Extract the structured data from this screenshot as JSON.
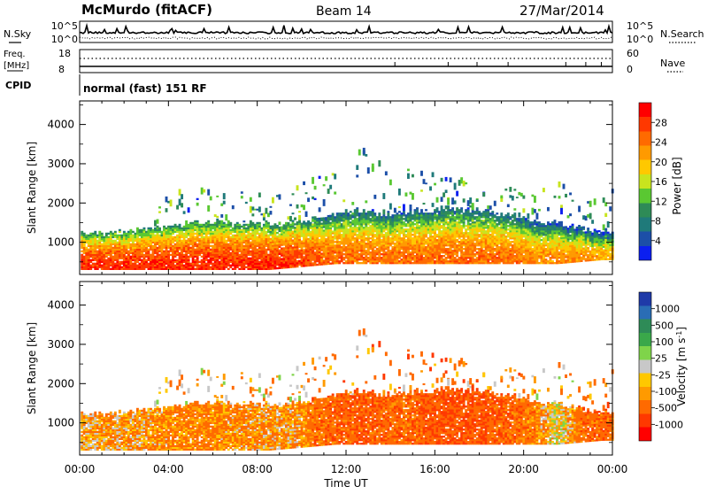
{
  "header": {
    "station": "McMurdo (fitACF)",
    "beam": "Beam 14",
    "date": "27/Mar/2014"
  },
  "strip_panels": {
    "nsky_label": "N.Sky",
    "nsearch_label": "N.Search",
    "nsky_top_tick": "10^5",
    "nsky_bottom_tick": "10^0",
    "freq_label_line1": "Freq.",
    "freq_label_line2": "[MHz]",
    "freq_top_tick": "18",
    "freq_bottom_tick": "8",
    "nave_label": "Nave",
    "nave_top_tick": "60",
    "nave_bottom_tick": "0",
    "cpid_label": "CPID",
    "cpid_text": "normal (fast) 151 RF"
  },
  "chart_data": [
    {
      "type": "heatmap",
      "name": "power",
      "ylabel": "Slant Range [km]",
      "ylim": [
        180,
        4600
      ],
      "yticks": [
        1000,
        2000,
        3000,
        4000
      ],
      "xlim_hours": [
        0,
        24
      ],
      "colorbar": {
        "label": "Power [dB]",
        "ticks": [
          "28",
          "24",
          "20",
          "16",
          "12",
          "8",
          "4"
        ],
        "colors": [
          "#ff0000",
          "#ff3800",
          "#ff6a00",
          "#ff9a00",
          "#ffc800",
          "#c8e41e",
          "#5ac832",
          "#2e8b57",
          "#1f7a7a",
          "#1c4fa8",
          "#0b1ff0"
        ]
      },
      "x_hours": [
        0.5,
        1.5,
        2.5,
        3.5,
        4.5,
        5.5,
        6.5,
        7.5,
        8.5,
        9.5,
        10.5,
        11.5,
        12.5,
        13.5,
        14.5,
        15.5,
        16.5,
        17.5,
        18.5,
        19.5,
        20.5,
        21.5,
        22.5,
        23.5
      ],
      "echo_min_range_km": [
        300,
        300,
        300,
        300,
        300,
        300,
        300,
        300,
        300,
        350,
        400,
        450,
        450,
        450,
        450,
        450,
        450,
        450,
        450,
        450,
        450,
        450,
        500,
        550
      ],
      "echo_max_range_km": [
        1250,
        1250,
        1300,
        1350,
        1400,
        1500,
        1500,
        1450,
        1450,
        1450,
        1600,
        1700,
        1800,
        1700,
        1750,
        1800,
        1850,
        1800,
        1750,
        1650,
        1550,
        1450,
        1350,
        1250
      ],
      "peak_power_db": [
        30,
        30,
        30,
        30,
        30,
        30,
        30,
        30,
        30,
        30,
        28,
        26,
        26,
        26,
        26,
        26,
        26,
        26,
        26,
        26,
        24,
        24,
        24,
        22
      ],
      "scattered_max_range_km": [
        0,
        0,
        0,
        2100,
        2200,
        2300,
        2300,
        2250,
        2150,
        2200,
        2900,
        3500,
        3300,
        3100,
        2900,
        2800,
        2700,
        2500,
        2300,
        2400,
        2200,
        2450,
        2300,
        2250
      ]
    },
    {
      "type": "heatmap",
      "name": "velocity",
      "ylabel": "Slant Range [km]",
      "ylim": [
        180,
        4600
      ],
      "yticks": [
        1000,
        2000,
        3000,
        4000
      ],
      "xlim_hours": [
        0,
        24
      ],
      "xlabel": "Time UT",
      "xticks": [
        "00:00",
        "04:00",
        "08:00",
        "12:00",
        "16:00",
        "20:00",
        "00:00"
      ],
      "colorbar": {
        "label": "Velocity [m s^-1]",
        "ticks": [
          "1000",
          "500",
          "100",
          "25",
          "-25",
          "-100",
          "-500",
          "-1000"
        ],
        "colors": [
          "#1f3aa8",
          "#2a6db5",
          "#2e8b57",
          "#3aa84a",
          "#7fd44a",
          "#c8c8c8",
          "#ffc800",
          "#ff9a00",
          "#ff6a00",
          "#ff3800",
          "#ff0000"
        ]
      },
      "x_hours": [
        0.5,
        1.5,
        2.5,
        3.5,
        4.5,
        5.5,
        6.5,
        7.5,
        8.5,
        9.5,
        10.5,
        11.5,
        12.5,
        13.5,
        14.5,
        15.5,
        16.5,
        17.5,
        18.5,
        19.5,
        20.5,
        21.5,
        22.5,
        23.5
      ],
      "echo_min_range_km": [
        300,
        300,
        300,
        300,
        300,
        300,
        300,
        300,
        300,
        350,
        400,
        450,
        450,
        450,
        450,
        450,
        450,
        450,
        450,
        450,
        450,
        450,
        500,
        550
      ],
      "echo_max_range_km": [
        1250,
        1250,
        1300,
        1350,
        1400,
        1500,
        1500,
        1450,
        1450,
        1450,
        1600,
        1700,
        1800,
        1700,
        1750,
        1800,
        1850,
        1800,
        1750,
        1650,
        1550,
        1450,
        1350,
        1250
      ],
      "dominant_velocity_ms": [
        -40,
        -60,
        -60,
        -80,
        -120,
        -120,
        -100,
        -80,
        -60,
        -50,
        -150,
        -200,
        -220,
        -200,
        -180,
        -220,
        -250,
        -250,
        -220,
        -180,
        -120,
        60,
        -150,
        -200
      ]
    }
  ]
}
